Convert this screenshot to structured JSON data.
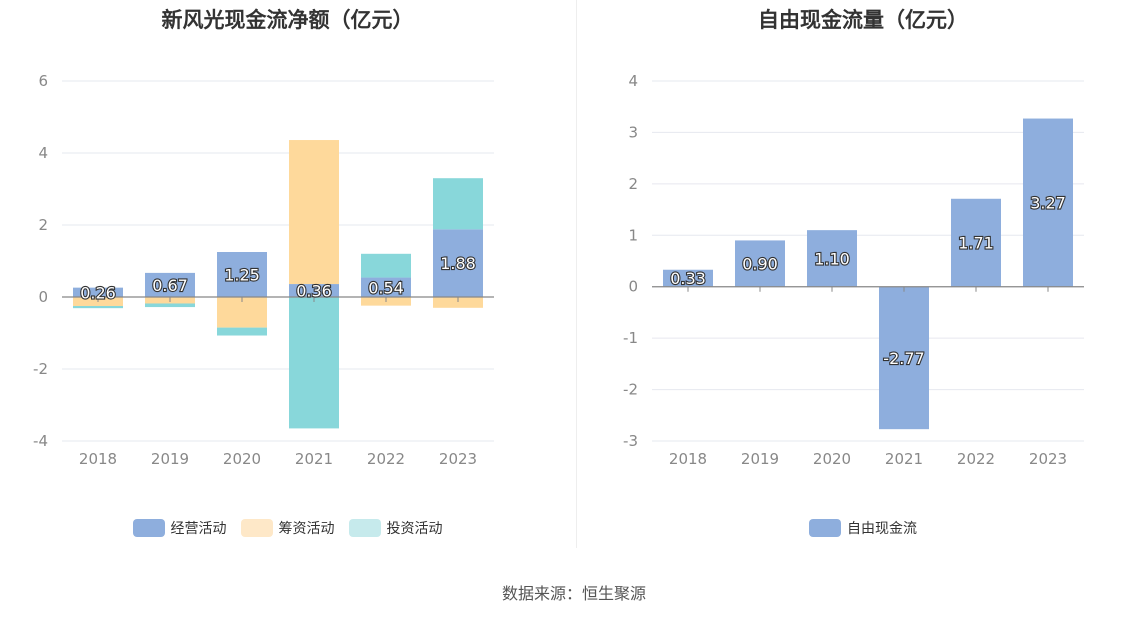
{
  "source_text": "数据来源：恒生聚源",
  "chart_data": [
    {
      "type": "bar",
      "stacked": true,
      "title": "新风光现金流净额（亿元）",
      "categories": [
        "2018",
        "2019",
        "2020",
        "2021",
        "2022",
        "2023"
      ],
      "ylim": [
        -4,
        6
      ],
      "yticks": [
        -4,
        -2,
        0,
        2,
        4,
        6
      ],
      "ytick_labels": [
        "-4",
        "-2",
        "0",
        "2",
        "4",
        "6"
      ],
      "series": [
        {
          "name": "经营活动",
          "color": "#8eaedd",
          "values": [
            0.26,
            0.67,
            1.25,
            0.36,
            0.54,
            1.88
          ],
          "labels": [
            "0.26",
            "0.67",
            "1.25",
            "0.36",
            "0.54",
            "1.88"
          ]
        },
        {
          "name": "筹资活动",
          "color": "#fed99b",
          "values": [
            -0.25,
            -0.18,
            -0.85,
            4.0,
            -0.24,
            -0.3
          ]
        },
        {
          "name": "投资活动",
          "color": "#88d7da",
          "values": [
            -0.06,
            -0.1,
            -0.22,
            -3.65,
            0.66,
            1.42
          ]
        }
      ],
      "legend": [
        "经营活动",
        "筹资活动",
        "投资活动"
      ],
      "legend_colors": [
        "#8eaedd",
        "#fee8c8",
        "#c6eaec"
      ],
      "legend_position": "bottom"
    },
    {
      "type": "bar",
      "title": "自由现金流量（亿元）",
      "categories": [
        "2018",
        "2019",
        "2020",
        "2021",
        "2022",
        "2023"
      ],
      "ylim": [
        -3,
        4
      ],
      "yticks": [
        -3,
        -2,
        -1,
        0,
        1,
        2,
        3,
        4
      ],
      "ytick_labels": [
        "-3",
        "-2",
        "-1",
        "0",
        "1",
        "2",
        "3",
        "4"
      ],
      "series": [
        {
          "name": "自由现金流",
          "color": "#8eaedd",
          "values": [
            0.33,
            0.9,
            1.1,
            -2.77,
            1.71,
            3.27
          ],
          "labels": [
            "0.33",
            "0.90",
            "1.10",
            "-2.77",
            "1.71",
            "3.27"
          ]
        }
      ],
      "legend": [
        "自由现金流"
      ],
      "legend_colors": [
        "#8eaedd"
      ],
      "legend_position": "bottom"
    }
  ]
}
